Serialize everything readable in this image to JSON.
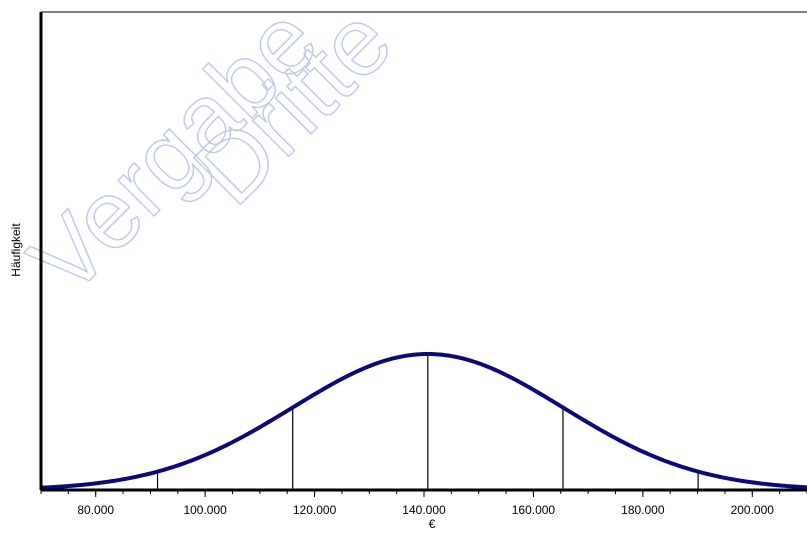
{
  "chart_data": {
    "type": "area",
    "title": "",
    "xlabel": "€",
    "ylabel": "Häufigkeit",
    "xlim": [
      70000,
      210000
    ],
    "x_ticks": [
      {
        "value": 80000,
        "label": "80.000"
      },
      {
        "value": 100000,
        "label": "100.000"
      },
      {
        "value": 120000,
        "label": "120.000"
      },
      {
        "value": 140000,
        "label": "140.000"
      },
      {
        "value": 160000,
        "label": "160.000"
      },
      {
        "value": 180000,
        "label": "180.000"
      },
      {
        "value": 200000,
        "label": "200.000"
      }
    ],
    "distribution": {
      "kind": "normal",
      "mean": 140700,
      "std_dev": 24700
    },
    "vertical_markers": [
      91300,
      116000,
      140700,
      165400,
      190100
    ],
    "curve_color": "#0a0a7a",
    "marker_color": "#000000",
    "grid": false,
    "legend": "none"
  },
  "watermark": {
    "words": [
      "Vergabe",
      "Dritte"
    ]
  }
}
